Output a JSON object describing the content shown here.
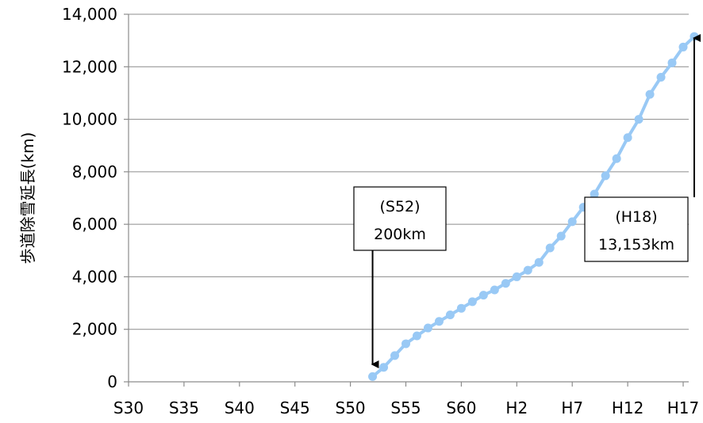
{
  "chart_data": {
    "type": "line",
    "ylabel": "歩道除雪延長(km)",
    "ylim": [
      0,
      14000
    ],
    "yticks": [
      "0",
      "2,000",
      "4,000",
      "6,000",
      "8,000",
      "10,000",
      "12,000",
      "14,000"
    ],
    "ytick_values": [
      0,
      2000,
      4000,
      6000,
      8000,
      10000,
      12000,
      14000
    ],
    "xlim": [
      30,
      80.5
    ],
    "xticks": [
      "S30",
      "S35",
      "S40",
      "S45",
      "S50",
      "S55",
      "S60",
      "H2",
      "H7",
      "H12",
      "H17"
    ],
    "xtick_values": [
      30,
      35,
      40,
      45,
      50,
      55,
      60,
      65,
      70,
      75,
      80
    ],
    "grid": "horizontal",
    "series": [
      {
        "color": "#99c9f5",
        "x": [
          52,
          53,
          54,
          55,
          56,
          57,
          58,
          59,
          60,
          61,
          62,
          63,
          64,
          65,
          66,
          67,
          68,
          69,
          70,
          71,
          72,
          73,
          74,
          75,
          76,
          77,
          78,
          79,
          80,
          81
        ],
        "values": [
          200,
          550,
          1000,
          1450,
          1750,
          2050,
          2300,
          2550,
          2800,
          3050,
          3300,
          3500,
          3750,
          4000,
          4250,
          4550,
          5100,
          5550,
          6100,
          6650,
          7150,
          7850,
          8500,
          9300,
          10000,
          10950,
          11600,
          12150,
          12750,
          13153
        ]
      }
    ],
    "annotations": [
      {
        "name": "s52",
        "line1": "(S52)",
        "line2": "200km",
        "point_x": 52,
        "point_y": 200
      },
      {
        "name": "h18",
        "line1": "(H18)",
        "line2": "13,153km",
        "point_x": 81,
        "point_y": 13153
      }
    ]
  }
}
